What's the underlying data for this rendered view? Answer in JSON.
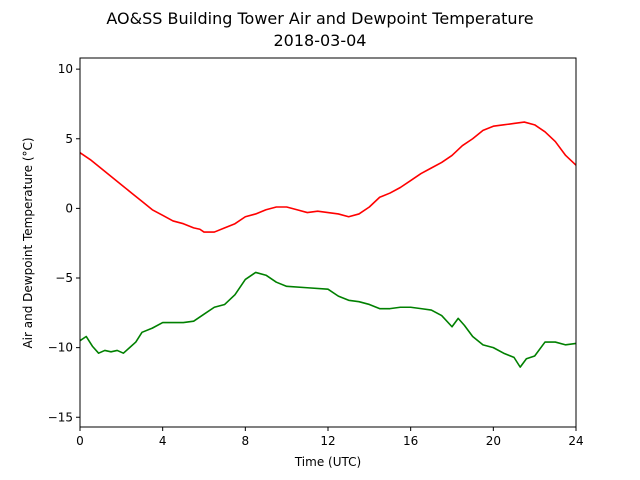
{
  "chart_data": {
    "type": "line",
    "title": "AO&SS Building Tower Air and Dewpoint Temperature",
    "subtitle": "2018-03-04",
    "xlabel": "Time (UTC)",
    "ylabel": "Air and Dewpoint Temperature (°C)",
    "xlim": [
      0,
      24
    ],
    "ylim": [
      -15.7,
      10.8
    ],
    "xticks": [
      0,
      4,
      8,
      12,
      16,
      20,
      24
    ],
    "yticks": [
      -15,
      -10,
      -5,
      0,
      5,
      10
    ],
    "grid": false,
    "legend": "none",
    "series": [
      {
        "color": "#ff0000",
        "x": [
          0,
          0.5,
          1,
          1.5,
          2,
          2.5,
          3,
          3.5,
          4,
          4.5,
          5,
          5.5,
          5.8,
          6,
          6.5,
          7,
          7.5,
          8,
          8.5,
          9,
          9.5,
          10,
          10.5,
          11,
          11.5,
          12,
          12.5,
          13,
          13.5,
          14,
          14.5,
          15,
          15.5,
          16,
          16.5,
          17,
          17.5,
          18,
          18.5,
          19,
          19.5,
          20,
          20.5,
          21,
          21.5,
          22,
          22.5,
          23,
          23.5,
          24
        ],
        "y": [
          4.0,
          3.5,
          2.9,
          2.3,
          1.7,
          1.1,
          0.5,
          -0.1,
          -0.5,
          -0.9,
          -1.1,
          -1.4,
          -1.5,
          -1.7,
          -1.7,
          -1.4,
          -1.1,
          -0.6,
          -0.4,
          -0.1,
          0.1,
          0.1,
          -0.1,
          -0.3,
          -0.2,
          -0.3,
          -0.4,
          -0.6,
          -0.4,
          0.1,
          0.8,
          1.1,
          1.5,
          2.0,
          2.5,
          2.9,
          3.3,
          3.8,
          4.5,
          5.0,
          5.6,
          5.9,
          6.0,
          6.1,
          6.2,
          6.0,
          5.5,
          4.8,
          3.8,
          3.1
        ]
      },
      {
        "color": "#008000",
        "x": [
          0,
          0.3,
          0.6,
          0.9,
          1.2,
          1.5,
          1.8,
          2.1,
          2.4,
          2.7,
          3.0,
          3.5,
          4.0,
          4.5,
          5.0,
          5.5,
          6.0,
          6.5,
          7.0,
          7.5,
          8.0,
          8.5,
          9.0,
          9.5,
          10.0,
          11.0,
          12.0,
          12.5,
          13.0,
          13.5,
          14.0,
          14.5,
          15.0,
          15.5,
          16.0,
          16.5,
          17.0,
          17.5,
          18.0,
          18.3,
          18.6,
          19.0,
          19.5,
          20.0,
          20.5,
          21.0,
          21.3,
          21.6,
          22.0,
          22.5,
          23.0,
          23.5,
          24.0
        ],
        "y": [
          -9.5,
          -9.2,
          -9.9,
          -10.4,
          -10.2,
          -10.3,
          -10.2,
          -10.4,
          -10.0,
          -9.6,
          -8.9,
          -8.6,
          -8.2,
          -8.2,
          -8.2,
          -8.1,
          -7.6,
          -7.1,
          -6.9,
          -6.2,
          -5.1,
          -4.6,
          -4.8,
          -5.3,
          -5.6,
          -5.7,
          -5.8,
          -6.3,
          -6.6,
          -6.7,
          -6.9,
          -7.2,
          -7.2,
          -7.1,
          -7.1,
          -7.2,
          -7.3,
          -7.7,
          -8.5,
          -7.9,
          -8.4,
          -9.2,
          -9.8,
          -10.0,
          -10.4,
          -10.7,
          -11.4,
          -10.8,
          -10.6,
          -9.6,
          -9.6,
          -9.8,
          -9.7
        ]
      }
    ]
  }
}
